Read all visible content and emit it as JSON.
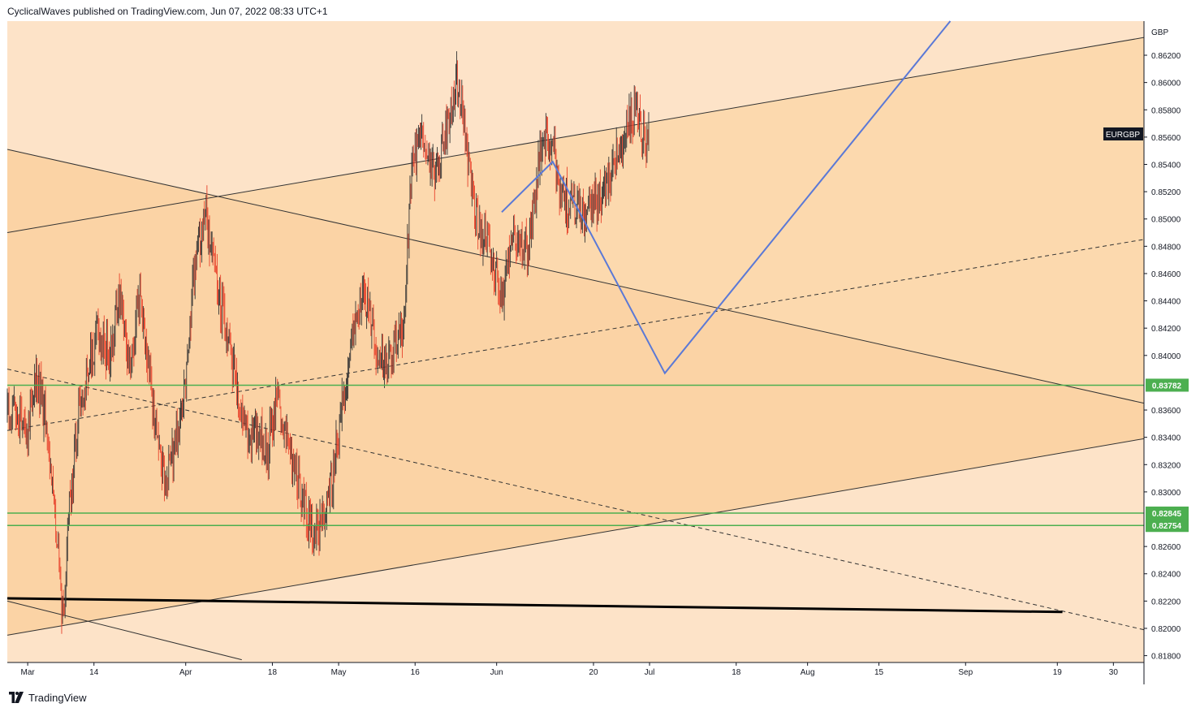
{
  "header": {
    "attribution": "CyclicalWaves published on TradingView.com, Jun 07, 2022 08:33 UTC+1"
  },
  "footer": {
    "brand": "TradingView",
    "logo_icon": "tradingview-logo-icon"
  },
  "colors": {
    "background_outer": "#fde3c8",
    "channel_fill": "#fcd9ae",
    "wedge_fill": "#fbd3a5",
    "candle_up": "#333333",
    "candle_down": "#e8432c",
    "forecast": "#5b79d6",
    "support_line": "#4caf50",
    "trendline": "#333333",
    "symbol_badge": "#131722"
  },
  "chart_data": {
    "type": "candlestick",
    "symbol": "EURGBP",
    "currency": "GBP",
    "ylim": [
      0.8175,
      0.8645
    ],
    "xlim": [
      "2022-02-25",
      "2022-10-06"
    ],
    "y_ticks": [
      "0.86200",
      "0.86000",
      "0.85800",
      "0.85600",
      "0.85400",
      "0.85200",
      "0.85000",
      "0.84800",
      "0.84600",
      "0.84400",
      "0.84200",
      "0.84000",
      "0.83600",
      "0.83400",
      "0.83200",
      "0.83000",
      "0.82600",
      "0.82400",
      "0.82200",
      "0.82000",
      "0.81800"
    ],
    "x_ticks": [
      {
        "label": "Mar",
        "date": "2022-03-01"
      },
      {
        "label": "14",
        "date": "2022-03-14"
      },
      {
        "label": "Apr",
        "date": "2022-04-01"
      },
      {
        "label": "18",
        "date": "2022-04-18"
      },
      {
        "label": "May",
        "date": "2022-05-01"
      },
      {
        "label": "16",
        "date": "2022-05-16"
      },
      {
        "label": "Jun",
        "date": "2022-06-01"
      },
      {
        "label": "20",
        "date": "2022-06-20"
      },
      {
        "label": "Jul",
        "date": "2022-07-01"
      },
      {
        "label": "18",
        "date": "2022-07-18"
      },
      {
        "label": "Aug",
        "date": "2022-08-01"
      },
      {
        "label": "15",
        "date": "2022-08-15"
      },
      {
        "label": "Sep",
        "date": "2022-09-01"
      },
      {
        "label": "19",
        "date": "2022-09-19"
      },
      {
        "label": "30",
        "date": "2022-09-30"
      }
    ],
    "price_badges": [
      {
        "label": "0.83782",
        "value": 0.83782
      },
      {
        "label": "0.82845",
        "value": 0.82845
      },
      {
        "label": "0.82754",
        "value": 0.82754
      }
    ],
    "close_path": [
      [
        "2022-02-25",
        0.836
      ],
      [
        "2022-03-01",
        0.835
      ],
      [
        "2022-03-03",
        0.8385
      ],
      [
        "2022-03-05",
        0.834
      ],
      [
        "2022-03-07",
        0.825
      ],
      [
        "2022-03-08",
        0.8205
      ],
      [
        "2022-03-09",
        0.828
      ],
      [
        "2022-03-11",
        0.836
      ],
      [
        "2022-03-13",
        0.8395
      ],
      [
        "2022-03-15",
        0.842
      ],
      [
        "2022-03-17",
        0.84
      ],
      [
        "2022-03-19",
        0.844
      ],
      [
        "2022-03-21",
        0.8395
      ],
      [
        "2022-03-23",
        0.844
      ],
      [
        "2022-03-25",
        0.838
      ],
      [
        "2022-03-27",
        0.832
      ],
      [
        "2022-03-28",
        0.8305
      ],
      [
        "2022-03-30",
        0.834
      ],
      [
        "2022-04-01",
        0.839
      ],
      [
        "2022-04-03",
        0.847
      ],
      [
        "2022-04-05",
        0.8505
      ],
      [
        "2022-04-07",
        0.845
      ],
      [
        "2022-04-09",
        0.842
      ],
      [
        "2022-04-11",
        0.838
      ],
      [
        "2022-04-13",
        0.834
      ],
      [
        "2022-04-15",
        0.835
      ],
      [
        "2022-04-17",
        0.833
      ],
      [
        "2022-04-19",
        0.837
      ],
      [
        "2022-04-21",
        0.834
      ],
      [
        "2022-04-23",
        0.831
      ],
      [
        "2022-04-25",
        0.828
      ],
      [
        "2022-04-26",
        0.827
      ],
      [
        "2022-04-28",
        0.8285
      ],
      [
        "2022-04-30",
        0.8315
      ],
      [
        "2022-05-02",
        0.837
      ],
      [
        "2022-05-04",
        0.842
      ],
      [
        "2022-05-06",
        0.845
      ],
      [
        "2022-05-08",
        0.841
      ],
      [
        "2022-05-10",
        0.839
      ],
      [
        "2022-05-12",
        0.84
      ],
      [
        "2022-05-14",
        0.843
      ],
      [
        "2022-05-15",
        0.852
      ],
      [
        "2022-05-16",
        0.855
      ],
      [
        "2022-05-18",
        0.856
      ],
      [
        "2022-05-20",
        0.853
      ],
      [
        "2022-05-22",
        0.8565
      ],
      [
        "2022-05-24",
        0.86
      ],
      [
        "2022-05-25",
        0.859
      ],
      [
        "2022-05-27",
        0.852
      ],
      [
        "2022-05-29",
        0.849
      ],
      [
        "2022-05-31",
        0.8475
      ],
      [
        "2022-06-02",
        0.844
      ],
      [
        "2022-06-04",
        0.849
      ],
      [
        "2022-06-06",
        0.848
      ],
      [
        "2022-06-07",
        0.8475
      ],
      [
        "2022-06-08",
        0.85
      ],
      [
        "2022-06-10",
        0.856
      ],
      [
        "2022-06-12",
        0.855
      ],
      [
        "2022-06-14",
        0.8515
      ],
      [
        "2022-06-16",
        0.851
      ],
      [
        "2022-06-18",
        0.85
      ],
      [
        "2022-06-20",
        0.851
      ],
      [
        "2022-06-22",
        0.852
      ],
      [
        "2022-06-24",
        0.8545
      ],
      [
        "2022-06-26",
        0.856
      ],
      [
        "2022-06-28",
        0.8575
      ],
      [
        "2022-06-30",
        0.856
      ],
      [
        "2022-07-01",
        0.8555
      ]
    ],
    "projection": [
      [
        "2022-06-02",
        0.8505
      ],
      [
        "2022-06-12",
        0.8542
      ],
      [
        "2022-07-04",
        0.8387
      ],
      [
        "2022-08-29",
        0.8645
      ]
    ],
    "trendlines": [
      {
        "style": "solid",
        "from": [
          "2022-02-25",
          0.849
        ],
        "to": [
          "2022-10-06",
          0.8633
        ]
      },
      {
        "style": "solid",
        "from": [
          "2022-02-25",
          0.8551
        ],
        "to": [
          "2022-10-06",
          0.8365
        ]
      },
      {
        "style": "solid",
        "from": [
          "2022-02-25",
          0.8195
        ],
        "to": [
          "2022-10-06",
          0.8339
        ]
      },
      {
        "style": "solid",
        "from": [
          "2022-02-25",
          0.822
        ],
        "to": [
          "2022-04-12",
          0.8177
        ]
      },
      {
        "style": "dashed",
        "from": [
          "2022-02-25",
          0.8345
        ],
        "to": [
          "2022-10-06",
          0.8485
        ]
      },
      {
        "style": "dashed",
        "from": [
          "2022-02-25",
          0.839
        ],
        "to": [
          "2022-10-06",
          0.8199
        ]
      },
      {
        "style": "bold",
        "from": [
          "2022-02-25",
          0.8222
        ],
        "to": [
          "2022-09-20",
          0.8212
        ]
      }
    ]
  }
}
